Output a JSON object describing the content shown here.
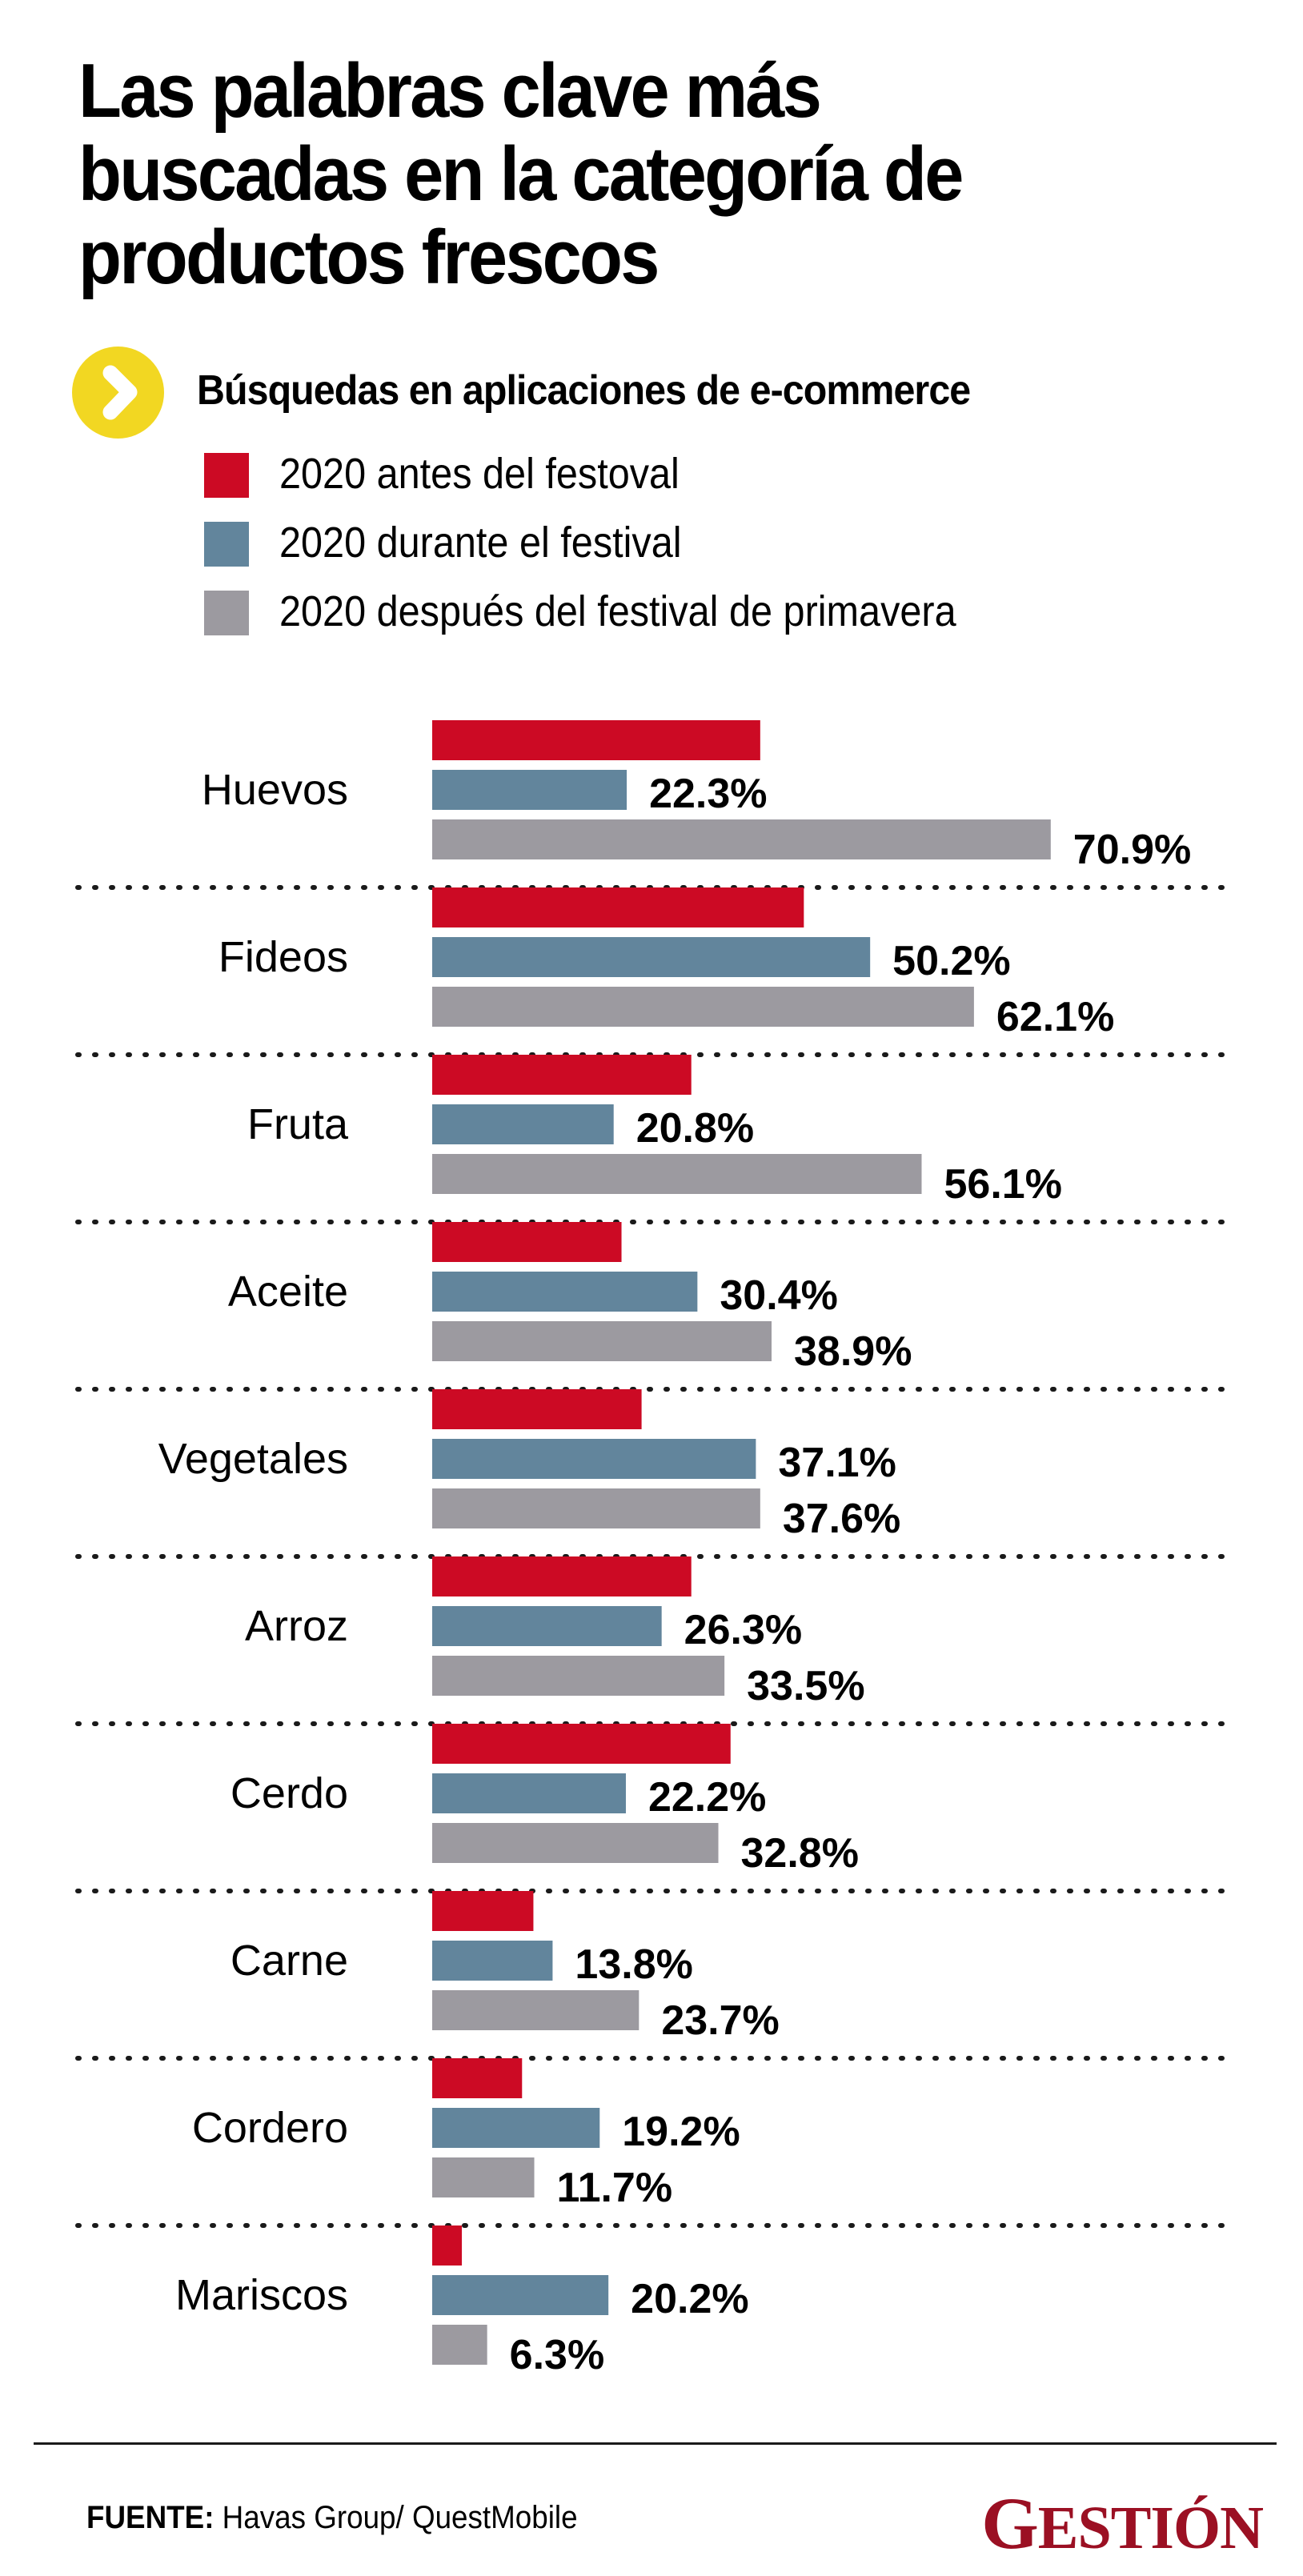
{
  "header": {
    "title_lines": [
      "Las palabras clave más",
      "buscadas en la categoría de",
      "productos frescos"
    ],
    "subtitle": "Búsquedas en aplicaciones de e-commerce",
    "subtitle_icon": "chevron-right-circle-icon"
  },
  "legend": [
    {
      "label": "2020 antes del festoval",
      "color": "#cc0a24"
    },
    {
      "label": "2020 durante el festival",
      "color": "#62859c"
    },
    {
      "label": "2020 después del festival de primavera",
      "color": "#9c9aa0"
    }
  ],
  "chart_data": {
    "type": "bar",
    "orientation": "horizontal",
    "title": "Las palabras clave más buscadas en la categoría de productos frescos",
    "subtitle": "Búsquedas en aplicaciones de e-commerce",
    "xlabel": "",
    "ylabel": "",
    "unit": "%",
    "xlim": [
      0,
      100
    ],
    "grid": false,
    "legend_position": "top-left",
    "categories": [
      "Huevos",
      "Fideos",
      "Fruta",
      "Aceite",
      "Vegetales",
      "Arroz",
      "Cerdo",
      "Carne",
      "Cordero",
      "Mariscos"
    ],
    "series": [
      {
        "name": "2020 antes del festoval",
        "color": "#cc0a24",
        "labeled": false,
        "values_are_estimates": true,
        "values_note": "Not printed on the chart; approximated from bar length.",
        "values": [
          37.6,
          42.6,
          29.7,
          21.7,
          24.0,
          29.7,
          34.2,
          11.6,
          10.3,
          3.4
        ]
      },
      {
        "name": "2020 durante el festival",
        "color": "#62859c",
        "labeled": true,
        "values": [
          22.3,
          50.2,
          20.8,
          30.4,
          37.1,
          26.3,
          22.2,
          13.8,
          19.2,
          20.2
        ]
      },
      {
        "name": "2020 después del festival de primavera",
        "color": "#9c9aa0",
        "labeled": true,
        "values": [
          70.9,
          62.1,
          56.1,
          38.9,
          37.6,
          33.5,
          32.8,
          23.7,
          11.7,
          6.3
        ]
      }
    ]
  },
  "footer": {
    "source_label": "FUENTE:",
    "source_text": " Havas Group/ QuestMobile",
    "brand_first": "G",
    "brand_rest": "ESTIÓN"
  }
}
